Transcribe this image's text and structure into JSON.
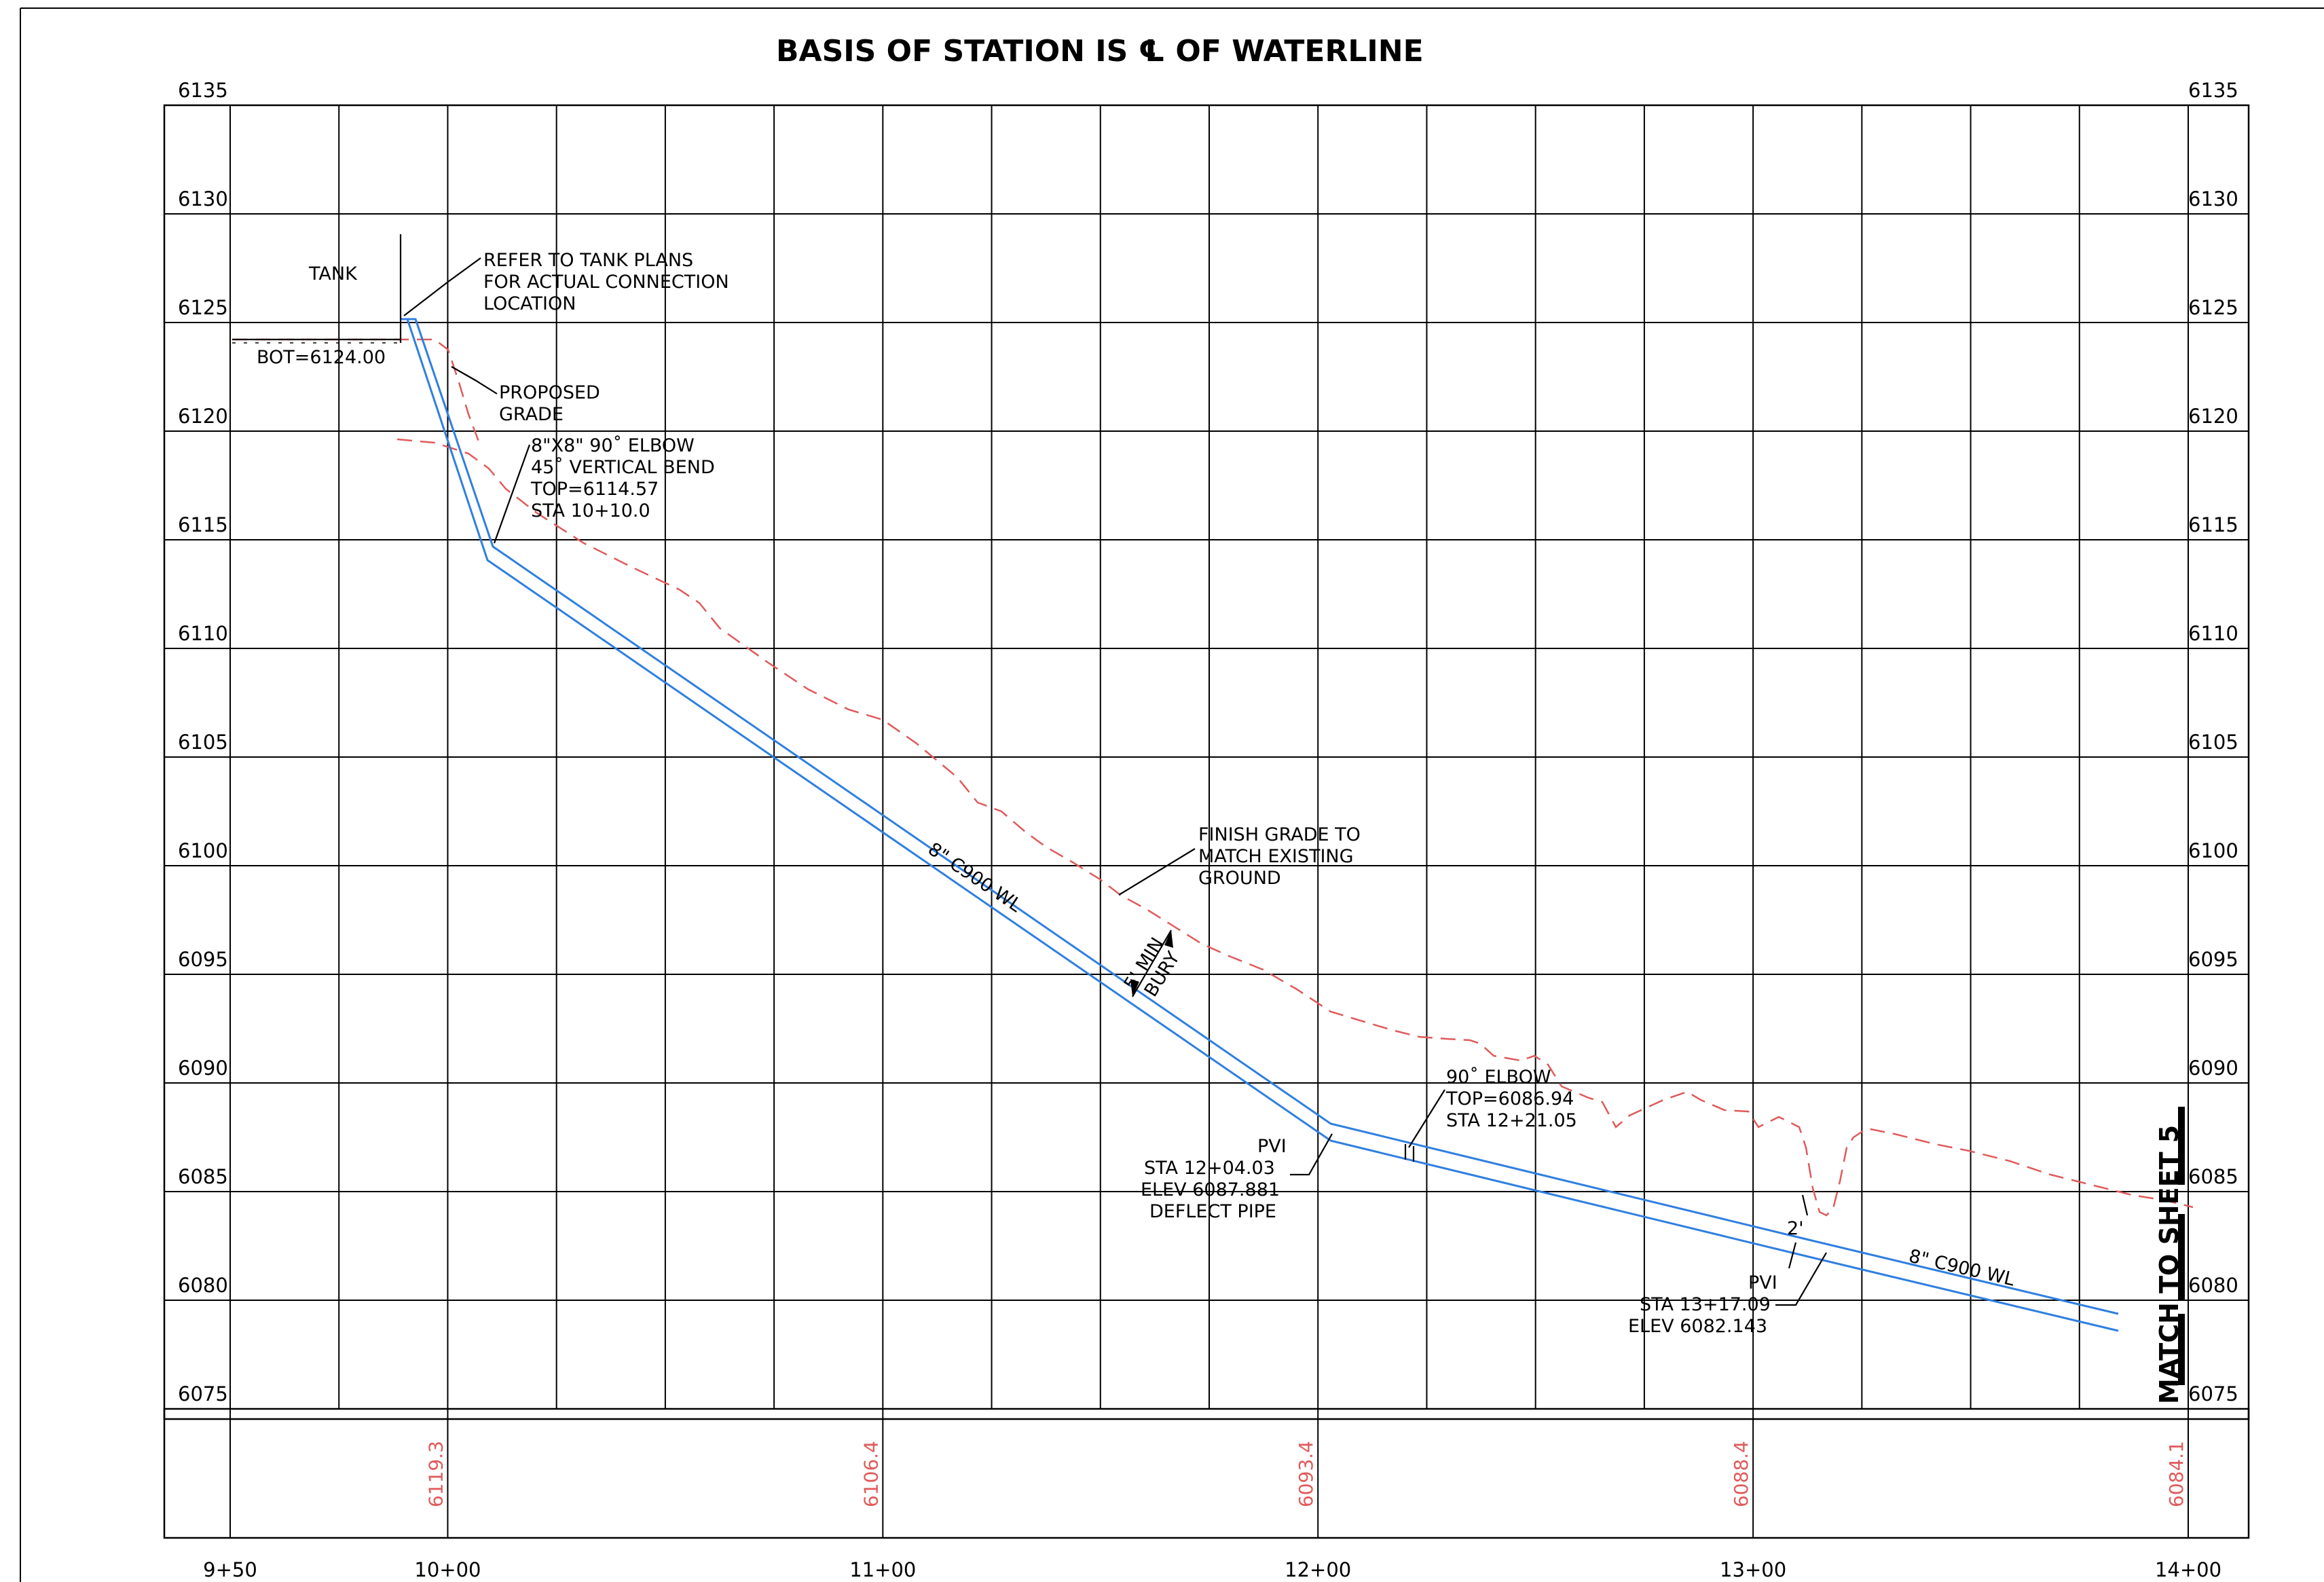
{
  "title": "BASIS OF STATION IS ℄ OF WATERLINE",
  "elevations": [
    "6135",
    "6130",
    "6125",
    "6120",
    "6115",
    "6110",
    "6105",
    "6100",
    "6095",
    "6090",
    "6085",
    "6080",
    "6075"
  ],
  "stations": [
    "9+50",
    "10+00",
    "11+00",
    "12+00",
    "13+00",
    "14+00"
  ],
  "ground_elevations": [
    "6119.3",
    "6106.4",
    "6093.4",
    "6088.4",
    "6084.1"
  ],
  "annotations": {
    "tank": "TANK",
    "bot": "BOT=6124.00",
    "refer": [
      "REFER TO TANK PLANS",
      "FOR ACTUAL CONNECTION",
      "LOCATION"
    ],
    "proposed_grade": [
      "PROPOSED",
      "GRADE"
    ],
    "elbow1": [
      "8\"X8\" 90˚ ELBOW",
      "45˚ VERTICAL BEND",
      "TOP=6114.57",
      "STA 10+10.0"
    ],
    "finish_grade": [
      "FINISH GRADE TO",
      "MATCH EXISTING",
      "GROUND"
    ],
    "pipe_label_1": "8\" C900 WL",
    "min_bury": [
      "5' MIN",
      "BURY"
    ],
    "elbow2": [
      "90˚ ELBOW",
      "TOP=6086.94",
      "STA 12+21.05"
    ],
    "pvi1": [
      "PVI",
      "STA 12+04.03",
      "ELEV 6087.881",
      "DEFLECT PIPE"
    ],
    "dim_2": "2'",
    "pipe_label_2": "8\" C900 WL",
    "pvi2": [
      "PVI",
      "STA 13+17.09",
      "ELEV 6082.143"
    ],
    "match": "MATCH TO SHEET 5"
  },
  "colors": {
    "pipe": "#2f7fe0",
    "grade": "#e05a5a",
    "grid": "#000000"
  }
}
